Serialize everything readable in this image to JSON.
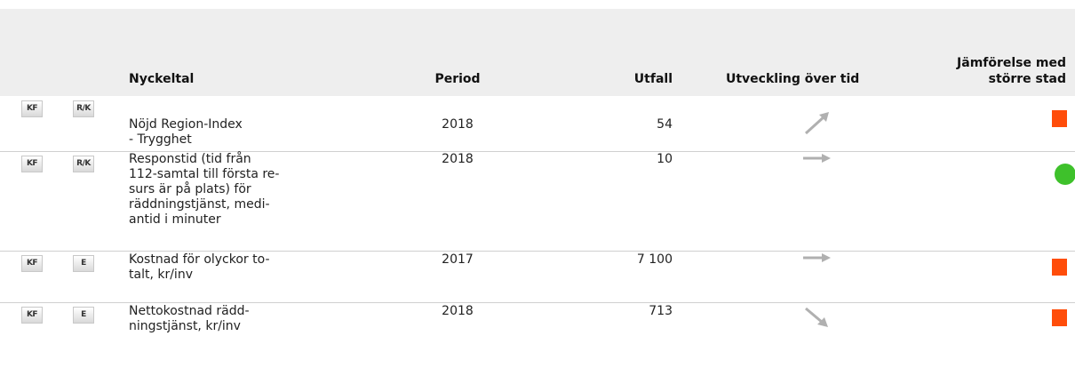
{
  "header": {
    "nyckeltal": "Nyckeltal",
    "period": "Period",
    "utfall": "Utfall",
    "utveckling": "Utveckling över tid",
    "jamforelse": "Jämförelse med\nstörre stad"
  },
  "rows": [
    {
      "badges": [
        "KF",
        "R/K"
      ],
      "nyckeltal": "Nöjd Region-Index\n- Trygghet",
      "period": 2018,
      "utfall": 54
    },
    {
      "badges": [
        "KF",
        "R/K"
      ],
      "nyckeltal": "Responstid (tid från\n112-samtal till första re-\nsurs är på plats) för\nräddningstjänst, medi-\nantid i minuter",
      "period": 2018,
      "utfall": 10
    },
    {
      "badges": [
        "KF",
        "E"
      ],
      "nyckeltal": "Kostnad för olyckor to-\ntalt, kr/inv",
      "period": 2017,
      "utfall": "7 100"
    },
    {
      "badges": [
        "KF",
        "E"
      ],
      "nyckeltal": "Nettokostnad rädd-\nningstjänst, kr/inv",
      "period": 2018,
      "utfall": 713
    }
  ]
}
